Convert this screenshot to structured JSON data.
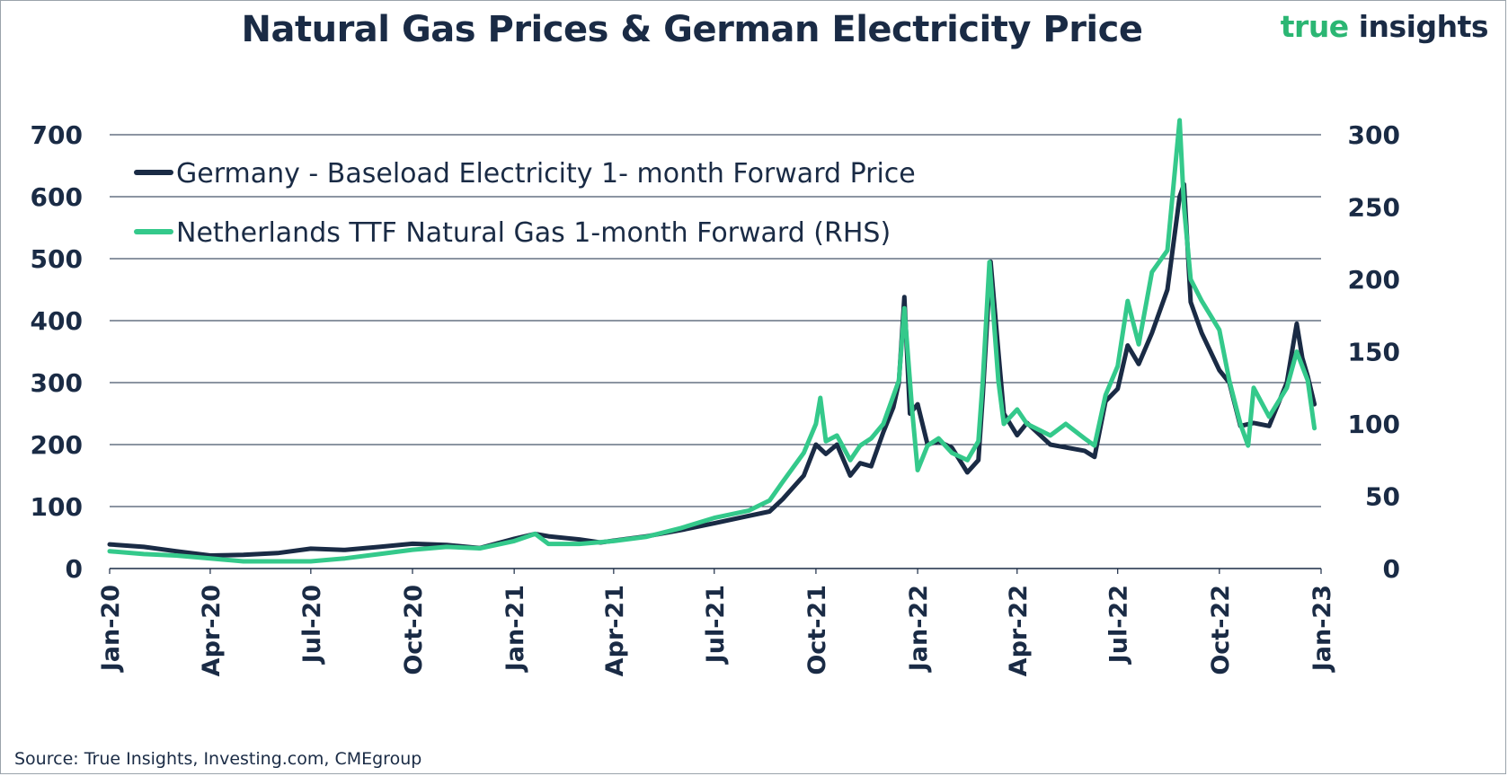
{
  "header": {
    "title": "Natural Gas Prices & German Electricity Price",
    "brand_part1": "true",
    "brand_part2": "insights"
  },
  "footer": {
    "source": "Source: True Insights, Investing.com, CMEgroup"
  },
  "colors": {
    "electricity": "#1a2b45",
    "gas": "#34c98b",
    "grid": "#1a2b45",
    "brand_green": "#2bb673"
  },
  "chart_data": {
    "type": "line",
    "title": "Natural Gas Prices & German Electricity Price",
    "legend_position": "top-left",
    "grid": true,
    "x_axis": {
      "type": "date",
      "range": [
        "2020-01-01",
        "2023-01-01"
      ],
      "tick_labels": [
        "Jan-20",
        "Apr-20",
        "Jul-20",
        "Oct-20",
        "Jan-21",
        "Apr-21",
        "Jul-21",
        "Oct-21",
        "Jan-22",
        "Apr-22",
        "Jul-22",
        "Oct-22",
        "Jan-23"
      ],
      "tick_dates": [
        "2020-01-01",
        "2020-04-01",
        "2020-07-01",
        "2020-10-01",
        "2021-01-01",
        "2021-04-01",
        "2021-07-01",
        "2021-10-01",
        "2022-01-01",
        "2022-04-01",
        "2022-07-01",
        "2022-10-01",
        "2023-01-01"
      ]
    },
    "y_left": {
      "range": [
        0,
        700
      ],
      "ticks": [
        0,
        100,
        200,
        300,
        400,
        500,
        600,
        700
      ]
    },
    "y_right": {
      "range": [
        0,
        300
      ],
      "ticks": [
        0,
        50,
        100,
        150,
        200,
        250,
        300
      ]
    },
    "series": [
      {
        "name": "Germany - Baseload Electricity 1- month Forward Price",
        "axis": "left",
        "points": [
          [
            "2020-01-01",
            39
          ],
          [
            "2020-02-01",
            35
          ],
          [
            "2020-03-01",
            28
          ],
          [
            "2020-04-01",
            21
          ],
          [
            "2020-05-01",
            22
          ],
          [
            "2020-06-01",
            25
          ],
          [
            "2020-07-01",
            32
          ],
          [
            "2020-08-01",
            30
          ],
          [
            "2020-09-01",
            35
          ],
          [
            "2020-10-01",
            40
          ],
          [
            "2020-11-01",
            38
          ],
          [
            "2020-12-01",
            33
          ],
          [
            "2021-01-01",
            48
          ],
          [
            "2021-01-20",
            56
          ],
          [
            "2021-02-01",
            52
          ],
          [
            "2021-03-01",
            47
          ],
          [
            "2021-03-20",
            42
          ],
          [
            "2021-04-01",
            45
          ],
          [
            "2021-05-01",
            52
          ],
          [
            "2021-06-01",
            62
          ],
          [
            "2021-07-01",
            73
          ],
          [
            "2021-08-01",
            85
          ],
          [
            "2021-08-20",
            92
          ],
          [
            "2021-09-01",
            112
          ],
          [
            "2021-09-20",
            150
          ],
          [
            "2021-10-01",
            200
          ],
          [
            "2021-10-10",
            185
          ],
          [
            "2021-10-20",
            200
          ],
          [
            "2021-11-01",
            150
          ],
          [
            "2021-11-10",
            170
          ],
          [
            "2021-11-20",
            165
          ],
          [
            "2021-12-01",
            220
          ],
          [
            "2021-12-10",
            260
          ],
          [
            "2021-12-15",
            300
          ],
          [
            "2021-12-20",
            438
          ],
          [
            "2021-12-25",
            250
          ],
          [
            "2022-01-01",
            265
          ],
          [
            "2022-01-10",
            200
          ],
          [
            "2022-01-20",
            205
          ],
          [
            "2022-02-01",
            195
          ],
          [
            "2022-02-15",
            155
          ],
          [
            "2022-02-25",
            175
          ],
          [
            "2022-03-01",
            280
          ],
          [
            "2022-03-08",
            495
          ],
          [
            "2022-03-15",
            350
          ],
          [
            "2022-03-20",
            250
          ],
          [
            "2022-04-01",
            215
          ],
          [
            "2022-04-10",
            235
          ],
          [
            "2022-05-01",
            200
          ],
          [
            "2022-06-01",
            190
          ],
          [
            "2022-06-10",
            180
          ],
          [
            "2022-06-20",
            270
          ],
          [
            "2022-07-01",
            290
          ],
          [
            "2022-07-10",
            360
          ],
          [
            "2022-07-20",
            330
          ],
          [
            "2022-08-01",
            380
          ],
          [
            "2022-08-15",
            450
          ],
          [
            "2022-08-26",
            600
          ],
          [
            "2022-08-30",
            620
          ],
          [
            "2022-09-05",
            430
          ],
          [
            "2022-09-15",
            380
          ],
          [
            "2022-10-01",
            320
          ],
          [
            "2022-10-10",
            300
          ],
          [
            "2022-10-20",
            230
          ],
          [
            "2022-11-01",
            235
          ],
          [
            "2022-11-15",
            230
          ],
          [
            "2022-12-01",
            300
          ],
          [
            "2022-12-10",
            395
          ],
          [
            "2022-12-15",
            340
          ],
          [
            "2022-12-20",
            310
          ],
          [
            "2022-12-26",
            265
          ]
        ]
      },
      {
        "name": "Netherlands TTF Natural Gas 1-month Forward (RHS)",
        "axis": "right",
        "points": [
          [
            "2020-01-01",
            12
          ],
          [
            "2020-02-01",
            10
          ],
          [
            "2020-03-01",
            9
          ],
          [
            "2020-04-01",
            7
          ],
          [
            "2020-05-01",
            5
          ],
          [
            "2020-06-01",
            5
          ],
          [
            "2020-07-01",
            5
          ],
          [
            "2020-08-01",
            7
          ],
          [
            "2020-09-01",
            10
          ],
          [
            "2020-10-01",
            13
          ],
          [
            "2020-11-01",
            15
          ],
          [
            "2020-12-01",
            14
          ],
          [
            "2021-01-01",
            19
          ],
          [
            "2021-01-20",
            24
          ],
          [
            "2021-02-01",
            17
          ],
          [
            "2021-03-01",
            17
          ],
          [
            "2021-04-01",
            19
          ],
          [
            "2021-05-01",
            22
          ],
          [
            "2021-06-01",
            28
          ],
          [
            "2021-07-01",
            35
          ],
          [
            "2021-08-01",
            40
          ],
          [
            "2021-08-20",
            47
          ],
          [
            "2021-09-01",
            60
          ],
          [
            "2021-09-20",
            80
          ],
          [
            "2021-10-01",
            100
          ],
          [
            "2021-10-05",
            118
          ],
          [
            "2021-10-10",
            88
          ],
          [
            "2021-10-20",
            92
          ],
          [
            "2021-11-01",
            75
          ],
          [
            "2021-11-10",
            85
          ],
          [
            "2021-11-20",
            90
          ],
          [
            "2021-12-01",
            100
          ],
          [
            "2021-12-15",
            130
          ],
          [
            "2021-12-20",
            180
          ],
          [
            "2021-12-27",
            110
          ],
          [
            "2022-01-01",
            68
          ],
          [
            "2022-01-10",
            85
          ],
          [
            "2022-01-20",
            90
          ],
          [
            "2022-02-01",
            80
          ],
          [
            "2022-02-15",
            75
          ],
          [
            "2022-02-25",
            88
          ],
          [
            "2022-03-01",
            130
          ],
          [
            "2022-03-07",
            212
          ],
          [
            "2022-03-15",
            130
          ],
          [
            "2022-03-20",
            100
          ],
          [
            "2022-04-01",
            110
          ],
          [
            "2022-04-10",
            100
          ],
          [
            "2022-05-01",
            92
          ],
          [
            "2022-05-15",
            100
          ],
          [
            "2022-06-01",
            90
          ],
          [
            "2022-06-10",
            85
          ],
          [
            "2022-06-20",
            120
          ],
          [
            "2022-07-01",
            140
          ],
          [
            "2022-07-10",
            185
          ],
          [
            "2022-07-20",
            155
          ],
          [
            "2022-08-01",
            205
          ],
          [
            "2022-08-15",
            220
          ],
          [
            "2022-08-26",
            310
          ],
          [
            "2022-08-30",
            250
          ],
          [
            "2022-09-05",
            200
          ],
          [
            "2022-09-15",
            185
          ],
          [
            "2022-10-01",
            165
          ],
          [
            "2022-10-10",
            130
          ],
          [
            "2022-10-20",
            100
          ],
          [
            "2022-10-27",
            85
          ],
          [
            "2022-11-01",
            125
          ],
          [
            "2022-11-15",
            105
          ],
          [
            "2022-12-01",
            125
          ],
          [
            "2022-12-10",
            150
          ],
          [
            "2022-12-20",
            130
          ],
          [
            "2022-12-26",
            97
          ]
        ]
      }
    ]
  }
}
